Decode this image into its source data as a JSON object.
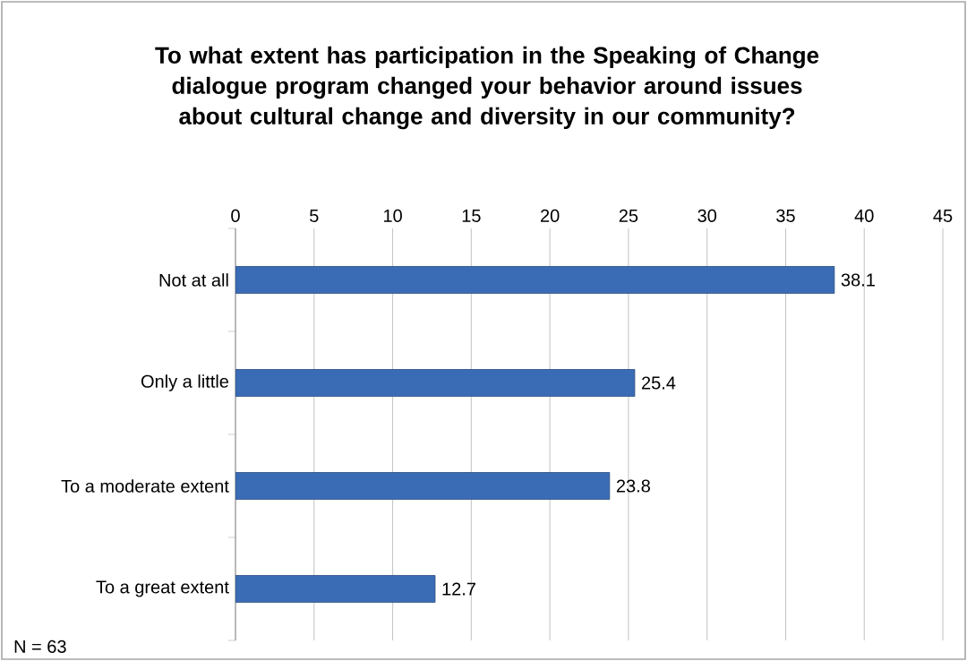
{
  "chart_data": {
    "type": "bar",
    "orientation": "horizontal",
    "title": "To what extent has participation in the Speaking of Change dialogue program changed your behavior around issues about cultural change and diversity in our community?",
    "categories": [
      "Not at all",
      "Only a little",
      "To a moderate extent",
      "To a great extent"
    ],
    "values": [
      38.1,
      25.4,
      23.8,
      12.7
    ],
    "color": "#3a6cb5",
    "xlim": [
      0,
      45
    ],
    "xticks": [
      0,
      5,
      10,
      15,
      20,
      25,
      30,
      35,
      40,
      45
    ],
    "grid": "x",
    "data_labels": true,
    "annotations": [
      "N = 63"
    ]
  }
}
